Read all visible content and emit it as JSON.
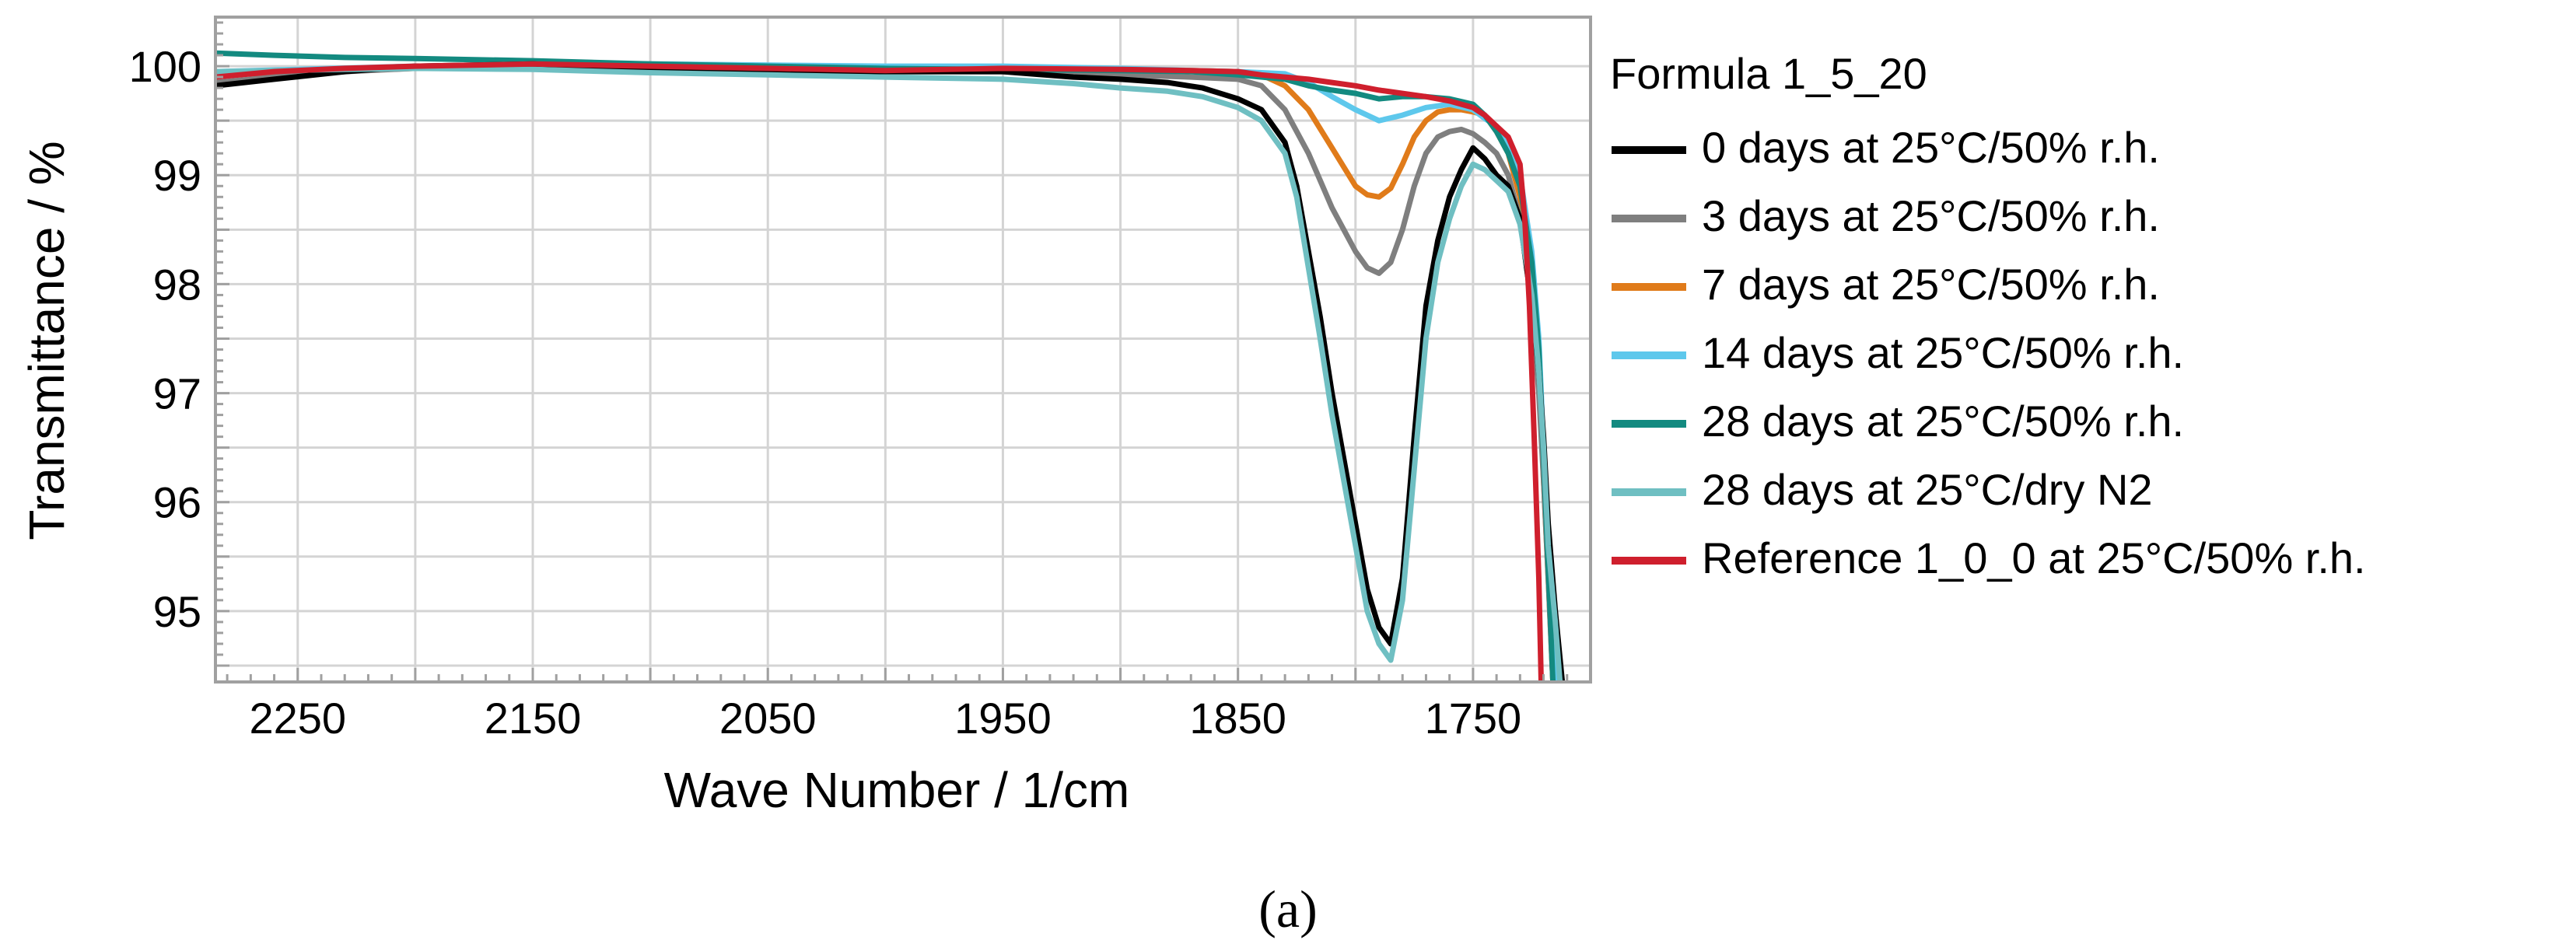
{
  "chart_data": {
    "type": "line",
    "title": "",
    "xlabel": "Wave Number / 1/cm",
    "ylabel": "Transmittance / %",
    "xlim": [
      2285,
      1700
    ],
    "ylim": [
      94.35,
      100.45
    ],
    "x_reversed": true,
    "grid": true,
    "xticks": [
      2250,
      2150,
      2050,
      1950,
      1850,
      1750
    ],
    "yticks": [
      95,
      96,
      97,
      98,
      99,
      100
    ],
    "legend_title": "Formula 1_5_20",
    "legend_position": "right-outside",
    "series": [
      {
        "name": "0 days at 25°C/50% r.h.",
        "color": "#000000",
        "x": [
          2285,
          2260,
          2230,
          2200,
          2150,
          2100,
          2050,
          2000,
          1950,
          1920,
          1900,
          1880,
          1865,
          1850,
          1840,
          1830,
          1825,
          1815,
          1810,
          1800,
          1795,
          1790,
          1785,
          1780,
          1775,
          1770,
          1765,
          1760,
          1755,
          1750,
          1745,
          1740,
          1735,
          1730,
          1725,
          1722,
          1720,
          1718,
          1715,
          1712
        ],
        "y": [
          99.82,
          99.88,
          99.95,
          100.0,
          100.02,
          99.98,
          99.96,
          99.95,
          99.95,
          99.9,
          99.88,
          99.85,
          99.8,
          99.7,
          99.6,
          99.3,
          98.9,
          97.7,
          97.0,
          95.8,
          95.2,
          94.85,
          94.7,
          95.3,
          96.6,
          97.8,
          98.4,
          98.8,
          99.05,
          99.25,
          99.15,
          99.0,
          98.9,
          98.6,
          97.8,
          97.2,
          96.6,
          95.8,
          95.0,
          94.35
        ]
      },
      {
        "name": "3 days at 25°C/50% r.h.",
        "color": "#7f7f7f",
        "x": [
          2285,
          2260,
          2230,
          2200,
          2150,
          2100,
          2050,
          2000,
          1950,
          1900,
          1870,
          1850,
          1840,
          1830,
          1820,
          1810,
          1800,
          1795,
          1790,
          1785,
          1780,
          1775,
          1770,
          1765,
          1760,
          1755,
          1750,
          1745,
          1740,
          1735,
          1730,
          1725,
          1722,
          1720,
          1718,
          1716
        ],
        "y": [
          99.85,
          99.9,
          99.95,
          99.98,
          100.02,
          99.97,
          99.96,
          99.95,
          99.95,
          99.92,
          99.9,
          99.88,
          99.82,
          99.6,
          99.2,
          98.7,
          98.3,
          98.15,
          98.1,
          98.2,
          98.5,
          98.9,
          99.2,
          99.35,
          99.4,
          99.42,
          99.38,
          99.3,
          99.2,
          99.0,
          98.6,
          97.8,
          97.0,
          96.2,
          95.3,
          94.35
        ]
      },
      {
        "name": "7 days at 25°C/50% r.h.",
        "color": "#e07b1a",
        "x": [
          2285,
          2200,
          2100,
          2000,
          1950,
          1900,
          1870,
          1850,
          1840,
          1830,
          1820,
          1810,
          1800,
          1795,
          1790,
          1785,
          1780,
          1775,
          1770,
          1765,
          1760,
          1755,
          1750,
          1745,
          1740,
          1735,
          1730,
          1725,
          1722,
          1720,
          1718,
          1716
        ],
        "y": [
          99.92,
          99.98,
          100.0,
          99.98,
          99.98,
          99.97,
          99.96,
          99.95,
          99.92,
          99.82,
          99.6,
          99.25,
          98.9,
          98.82,
          98.8,
          98.88,
          99.1,
          99.35,
          99.5,
          99.58,
          99.6,
          99.6,
          99.58,
          99.55,
          99.4,
          99.2,
          98.8,
          98.0,
          97.2,
          96.2,
          95.3,
          94.35
        ]
      },
      {
        "name": "14 days at 25°C/50% r.h.",
        "color": "#5ec8ec",
        "x": [
          2285,
          2200,
          2100,
          2000,
          1950,
          1900,
          1870,
          1850,
          1830,
          1820,
          1810,
          1800,
          1790,
          1780,
          1770,
          1760,
          1750,
          1745,
          1740,
          1735,
          1730,
          1725,
          1722,
          1720,
          1718,
          1715
        ],
        "y": [
          99.95,
          100.0,
          100.02,
          100.0,
          100.0,
          99.98,
          99.96,
          99.95,
          99.93,
          99.85,
          99.72,
          99.6,
          99.5,
          99.55,
          99.62,
          99.65,
          99.6,
          99.52,
          99.45,
          99.3,
          99.0,
          98.3,
          97.5,
          96.5,
          95.5,
          94.35
        ]
      },
      {
        "name": "28 days at 25°C/50% r.h.",
        "color": "#138a80",
        "x": [
          2285,
          2260,
          2230,
          2200,
          2150,
          2100,
          2050,
          2000,
          1950,
          1900,
          1870,
          1850,
          1830,
          1820,
          1810,
          1800,
          1790,
          1780,
          1770,
          1760,
          1750,
          1745,
          1740,
          1735,
          1730,
          1725,
          1722,
          1720,
          1718,
          1716
        ],
        "y": [
          100.12,
          100.1,
          100.08,
          100.07,
          100.05,
          100.02,
          100.0,
          99.98,
          99.97,
          99.96,
          99.95,
          99.92,
          99.88,
          99.82,
          99.78,
          99.75,
          99.7,
          99.72,
          99.72,
          99.7,
          99.65,
          99.55,
          99.4,
          99.2,
          98.9,
          98.2,
          97.4,
          96.4,
          95.4,
          94.35
        ]
      },
      {
        "name": "28 days at 25°C/dry N2",
        "color": "#6fbfc2",
        "x": [
          2285,
          2260,
          2230,
          2200,
          2150,
          2100,
          2050,
          2000,
          1950,
          1920,
          1900,
          1880,
          1865,
          1850,
          1840,
          1830,
          1825,
          1815,
          1810,
          1800,
          1795,
          1790,
          1785,
          1780,
          1775,
          1770,
          1765,
          1760,
          1755,
          1750,
          1745,
          1740,
          1735,
          1730,
          1725,
          1722,
          1720,
          1718,
          1715,
          1713
        ],
        "y": [
          99.95,
          99.96,
          99.97,
          99.98,
          99.97,
          99.94,
          99.92,
          99.9,
          99.88,
          99.84,
          99.8,
          99.77,
          99.72,
          99.62,
          99.5,
          99.2,
          98.8,
          97.5,
          96.8,
          95.6,
          95.0,
          94.7,
          94.55,
          95.1,
          96.3,
          97.5,
          98.2,
          98.6,
          98.9,
          99.1,
          99.05,
          98.95,
          98.85,
          98.55,
          97.9,
          97.2,
          96.5,
          95.6,
          94.9,
          94.35
        ]
      },
      {
        "name": "Reference 1_0_0 at 25°C/50% r.h.",
        "color": "#cf1f2d",
        "x": [
          2285,
          2260,
          2230,
          2200,
          2150,
          2100,
          2050,
          2000,
          1950,
          1900,
          1870,
          1850,
          1840,
          1830,
          1820,
          1810,
          1800,
          1790,
          1780,
          1770,
          1760,
          1750,
          1745,
          1740,
          1735,
          1730,
          1728,
          1726,
          1724,
          1722,
          1721
        ],
        "y": [
          99.9,
          99.95,
          99.98,
          100.0,
          100.02,
          100.0,
          99.98,
          99.96,
          99.98,
          99.97,
          99.96,
          99.95,
          99.92,
          99.9,
          99.88,
          99.85,
          99.82,
          99.78,
          99.75,
          99.72,
          99.68,
          99.62,
          99.55,
          99.45,
          99.35,
          99.1,
          98.6,
          97.8,
          96.6,
          95.3,
          94.35
        ]
      }
    ]
  },
  "caption": "(a)"
}
